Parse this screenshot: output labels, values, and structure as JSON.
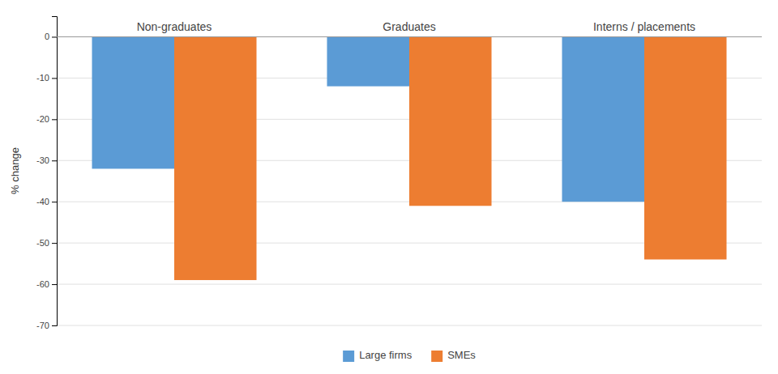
{
  "chart_data": {
    "type": "bar",
    "categories": [
      "Non-graduates",
      "Graduates",
      "Interns / placements"
    ],
    "series": [
      {
        "name": "Large firms",
        "color": "#5b9bd5",
        "values": [
          -32,
          -12,
          -40
        ]
      },
      {
        "name": "SMEs",
        "color": "#ed7d31",
        "values": [
          -59,
          -41,
          -54
        ]
      }
    ],
    "y_label": "% change",
    "ylim": [
      -70,
      5
    ],
    "yticks": [
      0,
      -10,
      -20,
      -30,
      -40,
      -50,
      -60,
      -70
    ],
    "grid": true,
    "legend": "bottom",
    "tick_labels": "y"
  }
}
